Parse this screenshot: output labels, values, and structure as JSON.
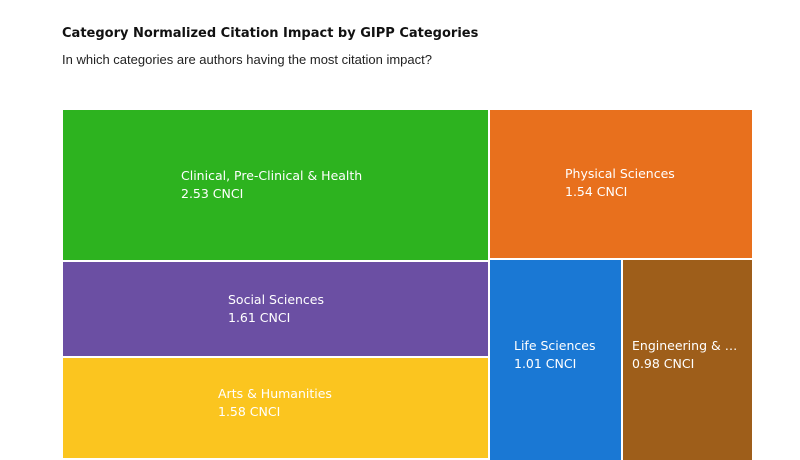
{
  "chart_data": {
    "type": "treemap",
    "title": "Category Normalized Citation Impact by GIPP Categories",
    "subtitle": "In which categories are authors having the most citation impact?",
    "unit": "CNCI",
    "items": [
      {
        "name": "Clinical, Pre-Clinical & Health",
        "value": 2.53,
        "value_label": "2.53 CNCI",
        "color": "#2db31f"
      },
      {
        "name": "Physical Sciences",
        "value": 1.54,
        "value_label": "1.54 CNCI",
        "color": "#e8701d"
      },
      {
        "name": "Social Sciences",
        "value": 1.61,
        "value_label": "1.61 CNCI",
        "color": "#6b4fa3"
      },
      {
        "name": "Arts & Humanities",
        "value": 1.58,
        "value_label": "1.58 CNCI",
        "color": "#fbc51f"
      },
      {
        "name": "Life Sciences",
        "value": 1.01,
        "value_label": "1.01 CNCI",
        "color": "#1a78d4"
      },
      {
        "name": "Engineering & …",
        "value": 0.98,
        "value_label": "0.98 CNCI",
        "color": "#9e5e1a"
      }
    ]
  }
}
